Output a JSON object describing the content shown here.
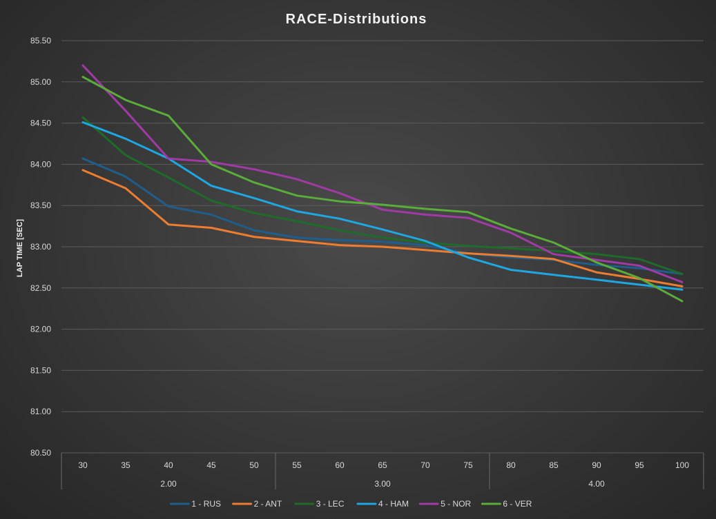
{
  "chart_data": {
    "type": "line",
    "title": "RACE-Distributions",
    "ylabel": "LAP TIME [SEC]",
    "xlabel": "",
    "ylim": [
      80.5,
      85.5
    ],
    "yticks": [
      "80.50",
      "81.00",
      "81.50",
      "82.00",
      "82.50",
      "83.00",
      "83.50",
      "84.00",
      "84.50",
      "85.00",
      "85.50"
    ],
    "ytick_values": [
      80.5,
      81.0,
      81.5,
      82.0,
      82.5,
      83.0,
      83.5,
      84.0,
      84.5,
      85.0,
      85.5
    ],
    "categories": [
      "30",
      "35",
      "40",
      "45",
      "50",
      "55",
      "60",
      "65",
      "70",
      "75",
      "80",
      "85",
      "90",
      "95",
      "100"
    ],
    "groups": [
      {
        "label": "2.00",
        "start": 0,
        "end": 4
      },
      {
        "label": "3.00",
        "start": 5,
        "end": 9
      },
      {
        "label": "4.00",
        "start": 10,
        "end": 14
      }
    ],
    "grid": true,
    "legend_position": "bottom",
    "series": [
      {
        "name": "1 - RUS",
        "color": "#1f5e8c",
        "values": [
          84.07,
          83.85,
          83.49,
          83.39,
          83.2,
          83.11,
          83.08,
          83.06,
          83.02,
          82.92,
          82.87,
          82.84,
          82.78,
          82.74,
          82.67
        ]
      },
      {
        "name": "2 - ANT",
        "color": "#ed7d31",
        "values": [
          83.93,
          83.71,
          83.27,
          83.23,
          83.12,
          83.07,
          83.02,
          83.0,
          82.96,
          82.92,
          82.89,
          82.85,
          82.69,
          82.61,
          82.52
        ]
      },
      {
        "name": "3 - LEC",
        "color": "#1e6b2a",
        "values": [
          84.57,
          84.11,
          83.84,
          83.56,
          83.41,
          83.31,
          83.2,
          83.11,
          83.05,
          83.01,
          82.98,
          82.95,
          82.91,
          82.85,
          82.67
        ]
      },
      {
        "name": "4 - HAM",
        "color": "#1ea7e1",
        "values": [
          84.51,
          84.31,
          84.07,
          83.74,
          83.59,
          83.43,
          83.34,
          83.21,
          83.07,
          82.87,
          82.72,
          82.66,
          82.6,
          82.54,
          82.48
        ]
      },
      {
        "name": "5 - NOR",
        "color": "#a03aa5",
        "values": [
          85.2,
          84.65,
          84.07,
          84.03,
          83.94,
          83.82,
          83.65,
          83.45,
          83.39,
          83.35,
          83.17,
          82.91,
          82.84,
          82.77,
          82.57
        ]
      },
      {
        "name": "6 - VER",
        "color": "#5aad3a",
        "values": [
          85.06,
          84.78,
          84.59,
          84.0,
          83.78,
          83.62,
          83.55,
          83.51,
          83.46,
          83.42,
          83.22,
          83.05,
          82.81,
          82.62,
          82.34
        ]
      }
    ]
  }
}
